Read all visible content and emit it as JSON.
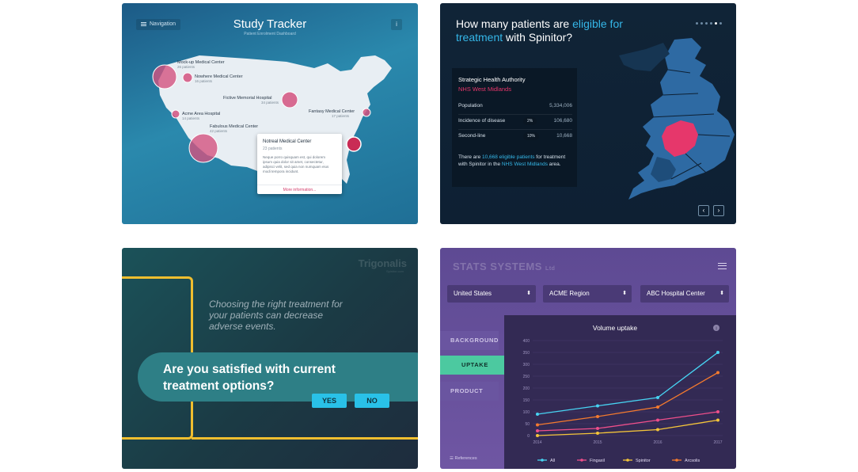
{
  "panel1": {
    "nav_label": "Navigation",
    "info_label": "i",
    "title": "Study Tracker",
    "subtitle": "Patient Enrolment Dashboard",
    "centers": [
      {
        "name": "Mock-up Medical Center",
        "count": "26 patients"
      },
      {
        "name": "Nowhere Medical Center",
        "count": "16 patients"
      },
      {
        "name": "Fictive Memorial Hospital",
        "count": "34 patients"
      },
      {
        "name": "Acme Area Hospital",
        "count": "14 patients"
      },
      {
        "name": "Fantasy Medical Center",
        "count": "17 patients"
      },
      {
        "name": "Fabulous Medical Center",
        "count": "42 patients"
      }
    ],
    "popup": {
      "title": "Notreal Medical Center",
      "count": "23 patients",
      "body": "Neque porro quisquam est, qui dolorem ipsum quia dolor sit amet, consectetur, adipisci velit, sed quia non numquam eius modi tempora incidunt.",
      "more": "More information..."
    },
    "colors": {
      "marker": "#d3527f",
      "map": "#e8eef3"
    }
  },
  "panel2": {
    "question_pre": "How many patients are ",
    "question_hl": "eligible for treatment",
    "question_post": " with Spinitor?",
    "authority_label": "Strategic Health Authority",
    "authority_name": "NHS West Midlands",
    "rows": [
      {
        "label": "Population",
        "pill": "",
        "value": "5,334,006"
      },
      {
        "label": "Incidence of disease",
        "pill": "2%",
        "value": "106,680"
      },
      {
        "label": "Second-line",
        "pill": "10%",
        "value": "10,668"
      }
    ],
    "note_pre": "There are ",
    "note_hl": "10,668 eligible patients",
    "note_mid": " for treatment with Spinitor in the ",
    "note_hl2": "NHS West Midlands",
    "note_post": " area.",
    "prev": "‹",
    "next": "›",
    "colors": {
      "highlight": "#35b7e8",
      "region": "#e6376b",
      "map": "#2e6aa3"
    }
  },
  "panel3": {
    "brand": "Trigonalis",
    "brand_sub": "Spinitor.com",
    "tagline": "Choosing the right treatment for your patients can decrease adverse events.",
    "question": "Are you satisfied with current treatment options?",
    "yes": "YES",
    "no": "NO",
    "colors": {
      "accent": "#f0be2f",
      "button": "#29c1e8"
    }
  },
  "panel4": {
    "logo": "STATS SYSTEMS",
    "logo_suffix": "Ltd",
    "selects": [
      "United States",
      "ACME Region",
      "ABC Hospital Center"
    ],
    "tabs": [
      "BACKGROUND",
      "UPTAKE",
      "PRODUCT"
    ],
    "active_tab": "UPTAKE",
    "references": "References",
    "info_icon": "i",
    "colors": {
      "active_tab": "#4cc9a0",
      "card": "#332a54"
    }
  },
  "chart_data": {
    "type": "line",
    "title": "Volume uptake",
    "x": [
      2014,
      2015,
      2016,
      2017
    ],
    "xlabel": "",
    "ylabel": "",
    "ylim": [
      0,
      400
    ],
    "yticks": [
      0,
      50,
      100,
      150,
      200,
      250,
      300,
      350,
      400
    ],
    "series": [
      {
        "name": "All",
        "color": "#47d3f2",
        "values": [
          90,
          125,
          160,
          350
        ]
      },
      {
        "name": "Fingaxil",
        "color": "#ef4f8b",
        "values": [
          20,
          30,
          65,
          100
        ]
      },
      {
        "name": "Spinitor",
        "color": "#f5c53a",
        "values": [
          0,
          10,
          25,
          65
        ]
      },
      {
        "name": "Arcsolis",
        "color": "#f47a2e",
        "values": [
          45,
          80,
          120,
          265
        ]
      }
    ],
    "grid": true,
    "legend": "bottom"
  }
}
